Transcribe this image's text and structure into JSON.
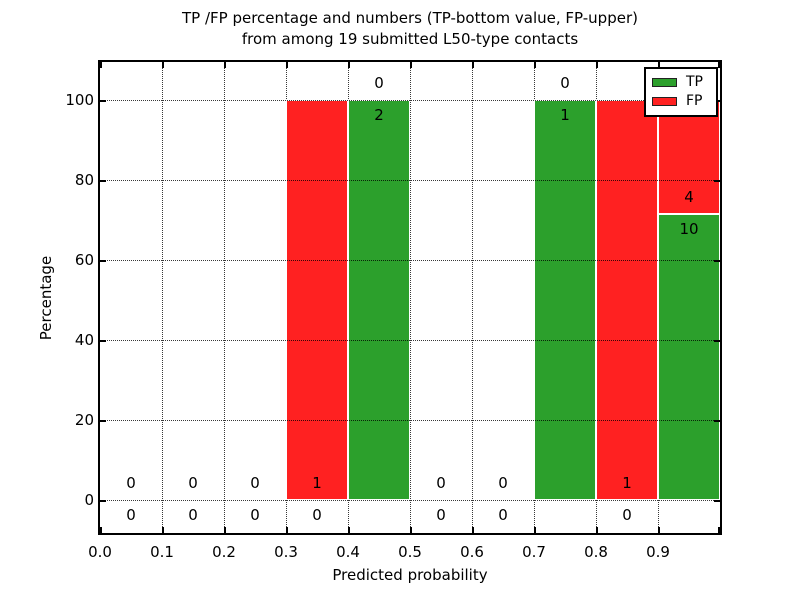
{
  "figure": {
    "title_line1": "TP /FP percentage and numbers (TP-bottom value, FP-upper)",
    "title_line2": "from among 19 submitted L50-type contacts",
    "background_color": "#ffffff"
  },
  "chart_data": {
    "type": "bar",
    "stacked": true,
    "title": "TP /FP percentage and numbers (TP-bottom value, FP-upper) from among 19 submitted L50-type contacts",
    "xlabel": "Predicted probability",
    "ylabel": "Percentage",
    "x_tick_labels": [
      "0.0",
      "0.1",
      "0.2",
      "0.3",
      "0.4",
      "0.5",
      "0.6",
      "0.7",
      "0.8",
      "0.9"
    ],
    "y_ticks": [
      0,
      20,
      40,
      60,
      80,
      100
    ],
    "xlim": [
      0.0,
      1.0
    ],
    "ylim": [
      -8,
      109
    ],
    "grid": "dotted both axes",
    "total_contacts": 19,
    "series_note": "TP count shown below segment boundary, FP count shown above boundary",
    "legend": {
      "position": "upper right",
      "entries": [
        {
          "label": "TP",
          "color": "#2CA02C"
        },
        {
          "label": "FP",
          "color": "#FF2121"
        }
      ]
    },
    "bins": [
      {
        "range": [
          0.0,
          0.1
        ],
        "tp": 0,
        "fp": 0,
        "tp_pct": 0,
        "fp_pct": 0
      },
      {
        "range": [
          0.1,
          0.2
        ],
        "tp": 0,
        "fp": 0,
        "tp_pct": 0,
        "fp_pct": 0
      },
      {
        "range": [
          0.2,
          0.3
        ],
        "tp": 0,
        "fp": 0,
        "tp_pct": 0,
        "fp_pct": 0
      },
      {
        "range": [
          0.3,
          0.4
        ],
        "tp": 0,
        "fp": 1,
        "tp_pct": 0,
        "fp_pct": 100
      },
      {
        "range": [
          0.4,
          0.5
        ],
        "tp": 2,
        "fp": 0,
        "tp_pct": 100,
        "fp_pct": 0
      },
      {
        "range": [
          0.5,
          0.6
        ],
        "tp": 0,
        "fp": 0,
        "tp_pct": 0,
        "fp_pct": 0
      },
      {
        "range": [
          0.6,
          0.7
        ],
        "tp": 0,
        "fp": 0,
        "tp_pct": 0,
        "fp_pct": 0
      },
      {
        "range": [
          0.7,
          0.8
        ],
        "tp": 1,
        "fp": 0,
        "tp_pct": 100,
        "fp_pct": 0
      },
      {
        "range": [
          0.8,
          0.9
        ],
        "tp": 0,
        "fp": 1,
        "tp_pct": 0,
        "fp_pct": 100
      },
      {
        "range": [
          0.9,
          1.0
        ],
        "tp": 10,
        "fp": 4,
        "tp_pct": 71.43,
        "fp_pct": 28.57
      }
    ]
  }
}
